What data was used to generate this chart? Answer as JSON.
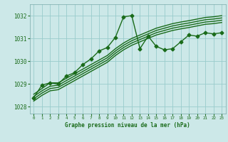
{
  "background_color": "#cce8e8",
  "plot_bg_color": "#cce8e8",
  "line_color": "#1a6b1a",
  "grid_color": "#99cccc",
  "xlabel": "Graphe pression niveau de la mer (hPa)",
  "ylim": [
    1027.7,
    1032.5
  ],
  "xlim": [
    -0.5,
    23.5
  ],
  "yticks": [
    1028,
    1029,
    1030,
    1031,
    1032
  ],
  "xticks": [
    0,
    1,
    2,
    3,
    4,
    5,
    6,
    7,
    8,
    9,
    10,
    11,
    12,
    13,
    14,
    15,
    16,
    17,
    18,
    19,
    20,
    21,
    22,
    23
  ],
  "series": [
    {
      "x": [
        0,
        1,
        2,
        3,
        4,
        5,
        6,
        7,
        8,
        9,
        10,
        11,
        12,
        13,
        14,
        15,
        16,
        17,
        18,
        19,
        20,
        21,
        22,
        23
      ],
      "y": [
        1028.55,
        1028.8,
        1029.05,
        1029.05,
        1029.25,
        1029.45,
        1029.65,
        1029.85,
        1030.05,
        1030.25,
        1030.55,
        1030.8,
        1031.0,
        1031.15,
        1031.3,
        1031.45,
        1031.55,
        1031.65,
        1031.72,
        1031.78,
        1031.85,
        1031.92,
        1031.95,
        1032.0
      ],
      "marker": null,
      "lw": 1.0
    },
    {
      "x": [
        0,
        1,
        2,
        3,
        4,
        5,
        6,
        7,
        8,
        9,
        10,
        11,
        12,
        13,
        14,
        15,
        16,
        17,
        18,
        19,
        20,
        21,
        22,
        23
      ],
      "y": [
        1028.45,
        1028.7,
        1028.9,
        1028.95,
        1029.15,
        1029.35,
        1029.55,
        1029.75,
        1029.95,
        1030.15,
        1030.45,
        1030.7,
        1030.9,
        1031.05,
        1031.2,
        1031.35,
        1031.45,
        1031.55,
        1031.62,
        1031.68,
        1031.75,
        1031.82,
        1031.85,
        1031.9
      ],
      "marker": null,
      "lw": 1.0
    },
    {
      "x": [
        0,
        1,
        2,
        3,
        4,
        5,
        6,
        7,
        8,
        9,
        10,
        11,
        12,
        13,
        14,
        15,
        16,
        17,
        18,
        19,
        20,
        21,
        22,
        23
      ],
      "y": [
        1028.35,
        1028.6,
        1028.8,
        1028.85,
        1029.05,
        1029.25,
        1029.45,
        1029.65,
        1029.85,
        1030.05,
        1030.35,
        1030.6,
        1030.8,
        1030.95,
        1031.1,
        1031.25,
        1031.35,
        1031.45,
        1031.52,
        1031.58,
        1031.65,
        1031.72,
        1031.75,
        1031.8
      ],
      "marker": null,
      "lw": 1.0
    },
    {
      "x": [
        0,
        1,
        2,
        3,
        4,
        5,
        6,
        7,
        8,
        9,
        10,
        11,
        12,
        13,
        14,
        15,
        16,
        17,
        18,
        19,
        20,
        21,
        22,
        23
      ],
      "y": [
        1028.25,
        1028.5,
        1028.7,
        1028.75,
        1028.95,
        1029.15,
        1029.35,
        1029.55,
        1029.75,
        1029.95,
        1030.25,
        1030.5,
        1030.7,
        1030.85,
        1031.0,
        1031.15,
        1031.25,
        1031.35,
        1031.42,
        1031.48,
        1031.55,
        1031.62,
        1031.65,
        1031.7
      ],
      "marker": null,
      "lw": 1.0
    },
    {
      "x": [
        0,
        1,
        2,
        3,
        4,
        5,
        6,
        7,
        8,
        9,
        10,
        11,
        12,
        13,
        14,
        15,
        16,
        17,
        18,
        19,
        20,
        21,
        22,
        23
      ],
      "y": [
        1028.4,
        1028.95,
        1029.05,
        1029.0,
        1029.35,
        1029.5,
        1029.85,
        1030.1,
        1030.45,
        1030.6,
        1031.05,
        1031.95,
        1032.0,
        1030.55,
        1031.1,
        1030.65,
        1030.5,
        1030.55,
        1030.85,
        1031.15,
        1031.1,
        1031.25,
        1031.2,
        1031.25
      ],
      "marker": "D",
      "lw": 1.0
    }
  ]
}
